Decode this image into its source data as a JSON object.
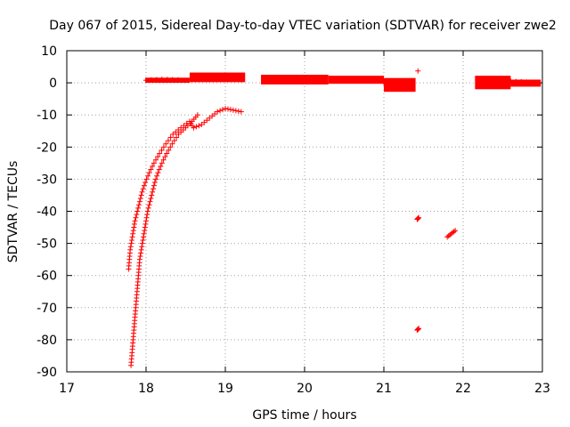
{
  "chart_data": {
    "type": "scatter",
    "title": "Day 067 of 2015, Sidereal Day-to-day VTEC variation (SDTVAR) for receiver zwe2",
    "xlabel": "GPS time / hours",
    "ylabel": "SDTVAR / TECUs",
    "xlim": [
      17,
      23
    ],
    "ylim": [
      -90,
      10
    ],
    "xticks": [
      17,
      18,
      19,
      20,
      21,
      22,
      23
    ],
    "yticks": [
      10,
      0,
      -10,
      -20,
      -30,
      -40,
      -50,
      -60,
      -70,
      -80,
      -90
    ],
    "grid": true,
    "legend": "none",
    "marker": "+",
    "color": "#ff0000",
    "series": [
      {
        "values_format": "[x_hours, y_TECU]",
        "points": [
          [
            17.81,
            -88
          ],
          [
            17.82,
            -85
          ],
          [
            17.83,
            -82
          ],
          [
            17.84,
            -79
          ],
          [
            17.85,
            -76
          ],
          [
            17.86,
            -73
          ],
          [
            17.87,
            -70
          ],
          [
            17.88,
            -67
          ],
          [
            17.89,
            -64
          ],
          [
            17.9,
            -61
          ],
          [
            17.91,
            -58
          ],
          [
            17.92,
            -55
          ],
          [
            17.94,
            -52
          ],
          [
            17.96,
            -49
          ],
          [
            17.98,
            -46
          ],
          [
            18.0,
            -43
          ],
          [
            18.02,
            -40
          ],
          [
            18.05,
            -37
          ],
          [
            18.08,
            -34
          ],
          [
            18.11,
            -31
          ],
          [
            18.15,
            -28
          ],
          [
            18.2,
            -25
          ],
          [
            18.26,
            -22
          ],
          [
            18.33,
            -19
          ],
          [
            18.41,
            -16
          ],
          [
            18.5,
            -14
          ],
          [
            18.58,
            -12
          ],
          [
            18.65,
            -10
          ],
          [
            17.78,
            -58
          ],
          [
            17.79,
            -55
          ],
          [
            17.8,
            -52
          ],
          [
            17.82,
            -49
          ],
          [
            17.84,
            -46
          ],
          [
            17.86,
            -43
          ],
          [
            17.89,
            -40
          ],
          [
            17.92,
            -37
          ],
          [
            17.95,
            -34
          ],
          [
            17.99,
            -31
          ],
          [
            18.04,
            -28
          ],
          [
            18.1,
            -25
          ],
          [
            18.17,
            -22
          ],
          [
            18.25,
            -19
          ],
          [
            18.34,
            -16
          ],
          [
            18.44,
            -14
          ],
          [
            18.55,
            -12
          ],
          [
            18.6,
            -14
          ],
          [
            18.7,
            -13
          ],
          [
            18.8,
            -11
          ],
          [
            18.9,
            -9
          ],
          [
            19.0,
            -8
          ],
          [
            19.1,
            -8.5
          ],
          [
            19.2,
            -9
          ],
          [
            18.0,
            0.8
          ],
          [
            18.2,
            1.1
          ],
          [
            18.4,
            0.9
          ],
          [
            18.6,
            2.0
          ],
          [
            18.8,
            1.7
          ],
          [
            19.0,
            1.4
          ],
          [
            19.2,
            1.0
          ],
          [
            19.5,
            1.4
          ],
          [
            19.8,
            0.8
          ],
          [
            20.1,
            0.5
          ],
          [
            20.4,
            0.7
          ],
          [
            20.7,
            1.0
          ],
          [
            21.0,
            0.0
          ],
          [
            21.3,
            -0.6
          ],
          [
            21.43,
            3.7
          ],
          [
            21.42,
            -42.5
          ],
          [
            21.44,
            -42
          ],
          [
            21.42,
            -77
          ],
          [
            21.44,
            -76.5
          ],
          [
            21.8,
            -48
          ],
          [
            21.85,
            -47
          ],
          [
            21.9,
            -46
          ],
          [
            22.2,
            0.2
          ],
          [
            22.4,
            0.8
          ],
          [
            22.6,
            0.5
          ],
          [
            22.8,
            0.2
          ],
          [
            22.95,
            -0.2
          ]
        ]
      }
    ],
    "bands": [
      {
        "x0": 17.99,
        "x1": 18.55,
        "y0": 0.0,
        "y1": 1.6
      },
      {
        "x0": 18.55,
        "x1": 19.25,
        "y0": 0.2,
        "y1": 3.2
      },
      {
        "x0": 19.45,
        "x1": 20.3,
        "y0": -0.5,
        "y1": 2.5
      },
      {
        "x0": 20.3,
        "x1": 21.0,
        "y0": -0.3,
        "y1": 2.2
      },
      {
        "x0": 21.0,
        "x1": 21.4,
        "y0": -2.8,
        "y1": 1.5
      },
      {
        "x0": 22.15,
        "x1": 22.6,
        "y0": -2.0,
        "y1": 2.2
      },
      {
        "x0": 22.6,
        "x1": 22.98,
        "y0": -1.2,
        "y1": 1.0
      }
    ]
  }
}
